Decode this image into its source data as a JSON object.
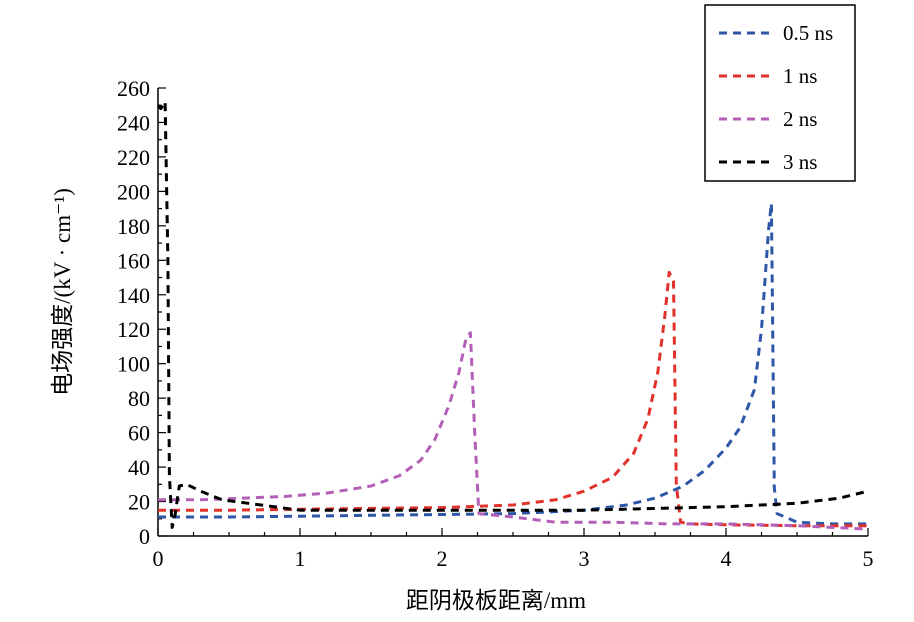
{
  "chart_data": {
    "type": "line",
    "title": "",
    "xlabel": "距阴极板距离/mm",
    "ylabel": "电场强度/(kV · cm⁻¹)",
    "xlim": [
      0,
      5
    ],
    "ylim": [
      0,
      260
    ],
    "xticks": [
      0,
      1,
      2,
      3,
      4,
      5
    ],
    "yticks": [
      0,
      20,
      40,
      60,
      80,
      100,
      120,
      140,
      160,
      180,
      200,
      220,
      240,
      260
    ],
    "grid": false,
    "legend_position": "top-right",
    "series": [
      {
        "name": "0.5 ns",
        "color": "#2e57a8",
        "x": [
          0,
          0.5,
          1,
          1.5,
          2,
          2.5,
          3,
          3.3,
          3.5,
          3.7,
          3.85,
          4,
          4.1,
          4.2,
          4.25,
          4.3,
          4.32,
          4.34,
          4.36,
          4.5,
          4.75,
          5
        ],
        "y": [
          11,
          11,
          11.5,
          12,
          12.5,
          13,
          15,
          18,
          22,
          29,
          38,
          51,
          63,
          85,
          120,
          178,
          193,
          28,
          13,
          8,
          7,
          7
        ]
      },
      {
        "name": "1 ns",
        "color": "#e0312a",
        "x": [
          0,
          0.5,
          1,
          1.5,
          2,
          2.5,
          2.8,
          3.0,
          3.2,
          3.35,
          3.45,
          3.52,
          3.57,
          3.6,
          3.63,
          3.65,
          3.68,
          3.75,
          4,
          4.5,
          5
        ],
        "y": [
          15,
          15,
          15.5,
          16,
          16.5,
          18,
          21,
          26,
          34,
          48,
          68,
          95,
          128,
          153,
          148,
          30,
          8,
          7,
          6.5,
          6,
          6
        ]
      },
      {
        "name": "2 ns",
        "color": "#b35fb8",
        "x": [
          0,
          0.3,
          0.6,
          0.9,
          1.2,
          1.5,
          1.7,
          1.85,
          1.95,
          2.05,
          2.12,
          2.17,
          2.2,
          2.23,
          2.26,
          2.5,
          2.8,
          3.2,
          3.6,
          4,
          4.5,
          5
        ],
        "y": [
          21,
          21,
          22,
          23,
          25,
          29,
          35,
          44,
          56,
          76,
          95,
          115,
          118,
          60,
          13,
          11,
          8,
          8,
          7,
          7,
          6,
          4
        ]
      },
      {
        "name": "3 ns",
        "color": "#000000",
        "x": [
          0,
          0.02,
          0.05,
          0.07,
          0.08,
          0.1,
          0.12,
          0.15,
          0.2,
          0.3,
          0.45,
          1,
          2,
          3,
          4,
          4.5,
          4.8,
          5
        ],
        "y": [
          250,
          248,
          252,
          160,
          35,
          5,
          12,
          29,
          30,
          26,
          21,
          15,
          15,
          15,
          17,
          19,
          22,
          26
        ]
      }
    ]
  }
}
